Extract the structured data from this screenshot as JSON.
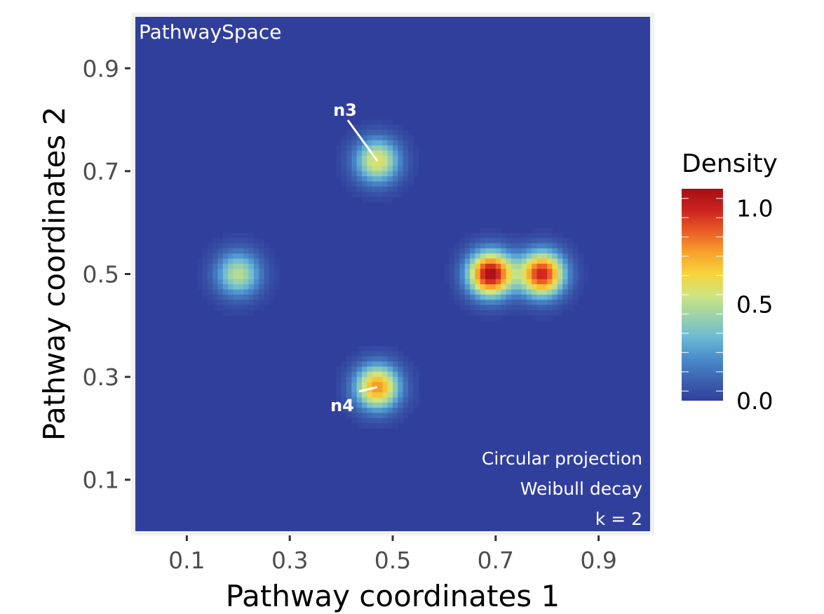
{
  "chart_data": {
    "type": "heatmap",
    "title": "",
    "xlabel": "Pathway coordinates 1",
    "ylabel": "Pathway coordinates 2",
    "xlim": [
      0,
      1
    ],
    "ylim": [
      0,
      1
    ],
    "x_ticks": [
      0.1,
      0.3,
      0.5,
      0.7,
      0.9
    ],
    "y_ticks": [
      0.1,
      0.3,
      0.5,
      0.7,
      0.9
    ],
    "x_tick_labels": [
      "0.1",
      "0.3",
      "0.5",
      "0.7",
      "0.9"
    ],
    "y_tick_labels": [
      "0.1",
      "0.3",
      "0.5",
      "0.7",
      "0.9"
    ],
    "grid": false,
    "corner_label": "PathwaySpace",
    "annotations": [
      "Circular projection",
      "Weibull decay",
      "k = 2"
    ],
    "legend": {
      "title": "Density",
      "placement": "right",
      "range": [
        0,
        1.1
      ],
      "ticks": [
        0.0,
        0.5,
        1.0
      ],
      "tick_labels": [
        "0.0",
        "0.5",
        "1.0"
      ]
    },
    "colorscale": [
      "#313f9c",
      "#3d63b0",
      "#4a8ccc",
      "#6bbbd4",
      "#9ed2a8",
      "#cfe57e",
      "#f8d33a",
      "#f7a22c",
      "#ea5c25",
      "#cc2220",
      "#a50f12"
    ],
    "sources": [
      {
        "x": 0.2,
        "y": 0.5,
        "density": 0.5
      },
      {
        "x": 0.47,
        "y": 0.72,
        "density": 0.6,
        "label": "n3"
      },
      {
        "x": 0.47,
        "y": 0.28,
        "density": 0.8,
        "label": "n4"
      },
      {
        "x": 0.69,
        "y": 0.5,
        "density": 1.1
      },
      {
        "x": 0.79,
        "y": 0.5,
        "density": 1.0
      }
    ]
  }
}
